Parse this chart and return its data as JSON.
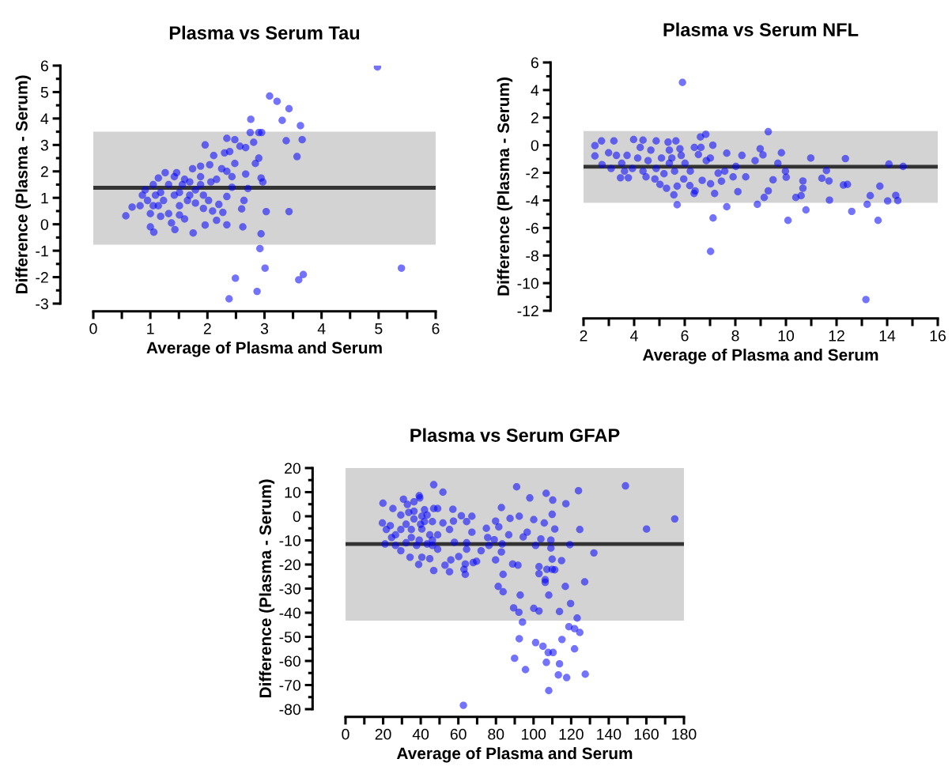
{
  "chart_data": [
    {
      "type": "scatter",
      "title": "Plasma vs Serum Tau",
      "xlabel": "Average of Plasma and Serum",
      "ylabel": "Difference (Plasma - Serum)",
      "marker": "circle",
      "grid": false,
      "legend": false,
      "xlim": [
        0,
        6
      ],
      "ylim": [
        -3,
        6
      ],
      "xticks": [
        0,
        {
          "value": 0.5,
          "label": null
        },
        1,
        {
          "value": 1.5,
          "label": null
        },
        2,
        {
          "value": 2.5,
          "label": null
        },
        3,
        {
          "value": 3.5,
          "label": null
        },
        4,
        {
          "value": 4.5,
          "label": null
        },
        5,
        {
          "value": 5.5,
          "label": null
        },
        6
      ],
      "yticks": [
        -3,
        -2,
        -1,
        0,
        1,
        2,
        3,
        4,
        5,
        6
      ],
      "bands": [
        {
          "axis": "y",
          "from": -0.77,
          "to": 3.5,
          "color": "#d3d3d3"
        }
      ],
      "ref_lines": [
        {
          "axis": "y",
          "value": 1.38,
          "color": "#333333"
        }
      ],
      "series": [
        {
          "color": "#0000ff",
          "x": [
            4.98,
            3.09,
            3.22,
            3.43,
            2.76,
            3.31,
            3.63,
            2.75,
            2.9,
            2.95,
            3.38,
            3.66,
            3.57,
            2.34,
            1.96,
            3.03,
            3.43,
            2.94,
            2.92,
            3.01,
            2.49,
            2.87,
            2.38,
            3.68,
            3.6,
            5.4,
            0.57,
            1.75,
            1.96,
            2.62,
            1.06,
            1.0,
            1.43,
            0.68,
            0.82,
            0.91,
            1.05,
            1.14,
            1.26,
            1.46,
            1.6,
            1.74,
            1.88,
            2.04,
            2.11,
            2.3,
            2.39,
            2.48,
            2.57,
            2.67,
            2.81,
            2.9,
            2.84,
            2.94,
            2.97,
            2.71,
            2.64,
            2.6,
            2.67,
            2.48,
            2.43,
            2.34,
            2.25,
            2.43,
            2.34,
            2.27,
            2.16,
            2.34,
            2.09,
            2.2,
            2.02,
            1.93,
            1.79,
            1.65,
            1.51,
            1.6,
            1.51,
            1.32,
            1.18,
            1.37,
            1.42,
            1.23,
            1.09,
            0.95,
            1.0,
            1.32,
            1.56,
            1.69,
            1.88,
            2.06,
            2.16,
            1.79,
            1.93,
            1.18,
            1.51,
            1.69,
            1.88,
            1.42,
            1.05,
            0.86,
            1.14
          ],
          "values": [
            5.95,
            4.85,
            4.65,
            4.37,
            3.97,
            3.93,
            3.73,
            3.47,
            3.47,
            3.47,
            3.16,
            3.2,
            2.56,
            3.25,
            3.0,
            0.48,
            0.48,
            -0.36,
            -0.92,
            -1.66,
            -2.04,
            -2.54,
            -2.82,
            -1.9,
            -2.1,
            -1.66,
            0.32,
            -0.33,
            -0.03,
            -0.1,
            -0.3,
            -0.1,
            -0.2,
            0.65,
            0.7,
            1.3,
            1.5,
            1.75,
            1.95,
            1.95,
            1.7,
            2.1,
            2.2,
            2.25,
            2.6,
            2.7,
            2.75,
            3.2,
            2.95,
            2.9,
            3.1,
            2.5,
            2.3,
            1.75,
            1.6,
            1.35,
            0.9,
            0.58,
            1.9,
            2.3,
            1.8,
            2.0,
            2.1,
            1.4,
            1.05,
            0.45,
            0.15,
            -0.02,
            0.5,
            0.75,
            0.9,
            1.1,
            1.3,
            0.9,
            0.7,
            0.2,
            0.35,
            0.4,
            0.3,
            0.05,
            1.1,
            0.9,
            1.1,
            0.9,
            0.4,
            1.5,
            1.5,
            1.6,
            1.5,
            1.6,
            1.7,
            0.8,
            0.6,
            1.2,
            1.2,
            1.1,
            1.8,
            1.8,
            0.7,
            1.1,
            0.7
          ]
        }
      ]
    },
    {
      "type": "scatter",
      "title": "Plasma vs Serum NFL",
      "xlabel": "Average of Plasma and Serum",
      "ylabel": "Difference (Plasma - Serum)",
      "marker": "circle",
      "grid": false,
      "legend": false,
      "xlim": [
        2,
        16
      ],
      "ylim": [
        -12,
        6
      ],
      "xticks": [
        2,
        {
          "value": 3,
          "label": null
        },
        4,
        {
          "value": 5,
          "label": null
        },
        6,
        {
          "value": 7,
          "label": null
        },
        8,
        {
          "value": 9,
          "label": null
        },
        10,
        {
          "value": 11,
          "label": null
        },
        12,
        {
          "value": 13,
          "label": null
        },
        14,
        {
          "value": 15,
          "label": null
        },
        16
      ],
      "yticks": [
        -12,
        -10,
        -8,
        -6,
        -4,
        -2,
        0,
        2,
        4,
        6
      ],
      "bands": [
        {
          "axis": "y",
          "from": -4.17,
          "to": 1.02,
          "color": "#d3d3d3"
        }
      ],
      "ref_lines": [
        {
          "axis": "y",
          "value": -1.56,
          "color": "#333333"
        }
      ],
      "series": [
        {
          "color": "#0000ff",
          "x": [
            5.91,
            9.3,
            7.02,
            13.16,
            7.12,
            7.66,
            5.7,
            10.08,
            10.79,
            12.6,
            13.64,
            13.21,
            13.33,
            13.71,
            14.02,
            14.34,
            14.42,
            14.07,
            14.63,
            12.35,
            12.27,
            12.43,
            11.72,
            11.7,
            11.6,
            11.42,
            10.98,
            10.67,
            10.67,
            10.6,
            10.39,
            10.01,
            9.98,
            9.82,
            9.68,
            9.49,
            9.3,
            9.14,
            8.87,
            9.09,
            8.98,
            8.78,
            8.41,
            8.26,
            8.1,
            8.02,
            7.91,
            7.66,
            7.58,
            7.45,
            7.32,
            7.18,
            7.02,
            7.11,
            6.83,
            6.62,
            6.64,
            6.38,
            6.54,
            6.85,
            7.01,
            6.69,
            6.41,
            6.2,
            6.37,
            5.57,
            5.7,
            5.28,
            5.81,
            5.65,
            5.34,
            4.87,
            4.35,
            3.98,
            3.2,
            2.71,
            2.45,
            2.45,
            2.73,
            2.99,
            3.46,
            3.77,
            4.47,
            4.82,
            5.02,
            5.96,
            6.22,
            6.01,
            5.39,
            4.87,
            4.35,
            3.93,
            3.51,
            3.3,
            3.72,
            4.14,
            4.55,
            5.08,
            5.49,
            5.86,
            3.09,
            3.62,
            5.18,
            5.6,
            4.24,
            4.66,
            5.39
          ],
          "values": [
            4.55,
            0.98,
            -7.7,
            -11.19,
            -5.28,
            -4.46,
            -4.32,
            -5.45,
            -4.69,
            -4.8,
            -5.45,
            -4.29,
            -3.66,
            -2.97,
            -4.04,
            -3.64,
            -4.02,
            -1.37,
            -1.54,
            -0.97,
            -2.89,
            -2.84,
            -3.98,
            -2.59,
            -1.84,
            -2.4,
            -0.93,
            -2.59,
            -3.12,
            -3.66,
            -3.79,
            -2.32,
            -1.88,
            -0.55,
            -1.31,
            -2.51,
            -3.31,
            -3.79,
            -4.29,
            -0.7,
            -0.26,
            -1.12,
            -2.3,
            -0.74,
            -3.37,
            -1.54,
            -2.3,
            -0.58,
            -1.88,
            -2.61,
            -2.03,
            -3.5,
            -2.8,
            0.0,
            0.79,
            0.6,
            -0.16,
            -0.16,
            -0.68,
            -1.12,
            -0.93,
            -2.55,
            -3.31,
            -2.93,
            -3.5,
            -3.6,
            -2.97,
            -3.12,
            -0.26,
            0.31,
            0.22,
            0.31,
            0.37,
            0.41,
            0.31,
            0.31,
            -0.03,
            -0.78,
            -1.4,
            -0.55,
            -2.36,
            -2.36,
            -2.3,
            -2.45,
            -2.84,
            -2.45,
            -1.88,
            -1.31,
            -1.31,
            -1.69,
            -1.88,
            -1.69,
            -1.31,
            -0.74,
            -0.74,
            -0.93,
            -1.12,
            -0.93,
            -0.93,
            -0.74,
            -1.69,
            -1.88,
            -2.07,
            -1.88,
            -0.16,
            -0.36,
            -0.36
          ]
        }
      ]
    },
    {
      "type": "scatter",
      "title": "Plasma vs Serum GFAP",
      "xlabel": "Average of Plasma and Serum",
      "ylabel": "Difference (Plasma - Serum)",
      "marker": "circle",
      "grid": false,
      "legend": false,
      "xlim": [
        0,
        180
      ],
      "ylim": [
        -80,
        20
      ],
      "xticks": [
        0,
        {
          "value": 10,
          "label": null
        },
        20,
        {
          "value": 30,
          "label": null
        },
        40,
        {
          "value": 50,
          "label": null
        },
        60,
        {
          "value": 70,
          "label": null
        },
        80,
        {
          "value": 90,
          "label": null
        },
        100,
        {
          "value": 110,
          "label": null
        },
        120,
        {
          "value": 130,
          "label": null
        },
        140,
        {
          "value": 150,
          "label": null
        },
        160,
        {
          "value": 170,
          "label": null
        },
        180
      ],
      "yticks": [
        -80,
        -70,
        -60,
        -50,
        -40,
        -30,
        -20,
        -10,
        0,
        10,
        20
      ],
      "bands": [
        {
          "axis": "y",
          "from": -43.3,
          "to": 20,
          "color": "#d3d3d3"
        }
      ],
      "ref_lines": [
        {
          "axis": "y",
          "value": -11.5,
          "color": "#333333"
        }
      ],
      "series": [
        {
          "color": "#0000ff",
          "x": [
            62.7,
            148.9,
            160.1,
            175.1,
            132.1,
            123.9,
            124.6,
            119.3,
            127.2,
            127.5,
            121.8,
            124.6,
            123.2,
            121.8,
            118.8,
            119.7,
            116.9,
            117.6,
            113.2,
            113.8,
            115.1,
            113.8,
            114.9,
            117.2,
            111.3,
            109.9,
            110.2,
            106.7,
            105.7,
            109.2,
            109.2,
            109.9,
            109.9,
            111.3,
            107.1,
            102.9,
            102.9,
            106.2,
            106.2,
            108.1,
            107.8,
            110.4,
            105.0,
            106.8,
            108.1,
            101.1,
            102.9,
            100.1,
            95.7,
            94.1,
            92.4,
            89.9,
            92.2,
            89.4,
            92.9,
            88.9,
            91.7,
            83.8,
            81.2,
            83.8,
            100.1,
            98.0,
            91.0,
            92.4,
            87.5,
            96.6,
            94.5,
            103.9,
            101.1,
            82.9,
            79.8,
            81.5,
            86.8,
            79.1,
            83.3,
            82.9,
            79.8,
            74.9,
            75.6,
            76.3,
            72.1,
            69.7,
            67.9,
            63.7,
            63.0,
            63.7,
            67.2,
            64.4,
            67.2,
            64.4,
            64.4,
            61.6,
            57.4,
            55.3,
            57.9,
            60.2,
            56.0,
            55.3,
            52.9,
            51.8,
            46.9,
            49.0,
            46.9,
            57.1,
            51.8,
            49.0,
            46.2,
            49.0,
            46.9,
            44.8,
            39.2,
            39.5,
            30.8,
            32.9,
            36.4,
            19.9,
            25.2,
            29.4,
            19.6,
            23.8,
            21.7,
            24.5,
            21.0,
            26.6,
            29.4,
            34.3,
            38.9,
            40.6,
            32.2,
            36.4,
            40.6,
            43.4,
            46.2,
            35.0,
            40.6,
            44.8,
            35.0,
            39.2,
            43.4,
            32.2,
            37.8,
            46.2,
            29.4,
            26.6,
            42.0,
            36.4,
            33.6,
            39.9,
            42.0
          ],
          "values": [
            -78.4,
            12.6,
            -5.3,
            -1.1,
            -15.2,
            10.6,
            -5.5,
            -11.8,
            -27.2,
            -65.5,
            -55.0,
            -48.2,
            -42.2,
            -46.6,
            -45.8,
            -36.2,
            -29.1,
            -66.9,
            -65.8,
            -61.2,
            -51.1,
            -39.5,
            -18.4,
            5.2,
            -5.3,
            0.8,
            6.7,
            9.5,
            -2.8,
            -9.9,
            -13.2,
            -17.8,
            -22.0,
            -22.2,
            -22.0,
            -20.9,
            -23.8,
            -26.3,
            -27.4,
            -32.7,
            -56.5,
            -56.5,
            -53.9,
            -60.6,
            -72.3,
            -52.4,
            -39.3,
            -38.2,
            -63.6,
            -43.9,
            -50.8,
            -58.9,
            -39.8,
            -38.0,
            -32.7,
            -19.8,
            -20.3,
            -24.1,
            -29.1,
            -31.3,
            -1.4,
            7.6,
            12.2,
            0.0,
            -0.9,
            -6.6,
            -8.6,
            -9.4,
            -12.1,
            3.6,
            -2.0,
            -4.4,
            -7.7,
            -9.7,
            -11.5,
            -14.8,
            -18.1,
            -5.0,
            -8.8,
            -12.1,
            -14.3,
            -18.7,
            -19.2,
            -19.8,
            -22.0,
            -24.1,
            0.0,
            -2.2,
            -6.6,
            -11.0,
            -13.7,
            0.2,
            -2.0,
            -5.5,
            -10.8,
            -16.7,
            -18.1,
            -23.0,
            -20.3,
            10.0,
            13.1,
            3.2,
            3.2,
            2.9,
            -2.8,
            -7.7,
            -9.9,
            -13.7,
            -22.5,
            -17.6,
            8.5,
            7.6,
            7.1,
            4.9,
            6.0,
            5.4,
            3.2,
            0.5,
            -2.8,
            -3.9,
            -5.5,
            -8.8,
            -11.5,
            -12.1,
            -14.3,
            -17.0,
            -20.0,
            -17.0,
            -3.3,
            -1.1,
            0.0,
            0.5,
            -2.2,
            -5.5,
            -5.3,
            -7.7,
            -8.8,
            -9.9,
            -11.5,
            -11.0,
            -12.1,
            -12.1,
            -5.5,
            -7.7,
            2.7,
            2.1,
            1.6,
            -3.3,
            -2.2
          ]
        }
      ]
    }
  ]
}
